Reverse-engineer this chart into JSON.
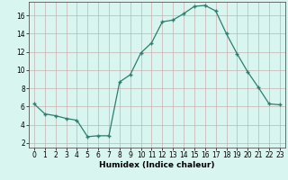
{
  "x": [
    0,
    1,
    2,
    3,
    4,
    5,
    6,
    7,
    8,
    9,
    10,
    11,
    12,
    13,
    14,
    15,
    16,
    17,
    18,
    19,
    20,
    21,
    22,
    23
  ],
  "y": [
    6.3,
    5.2,
    5.0,
    4.7,
    4.5,
    2.7,
    2.8,
    2.8,
    8.7,
    9.5,
    11.9,
    13.0,
    15.3,
    15.5,
    16.2,
    17.0,
    17.1,
    16.5,
    14.0,
    11.8,
    9.8,
    8.1,
    6.3,
    6.2
  ],
  "xlabel": "Humidex (Indice chaleur)",
  "xlim": [
    -0.5,
    23.5
  ],
  "ylim": [
    1.5,
    17.5
  ],
  "yticks": [
    2,
    4,
    6,
    8,
    10,
    12,
    14,
    16
  ],
  "xticks": [
    0,
    1,
    2,
    3,
    4,
    5,
    6,
    7,
    8,
    9,
    10,
    11,
    12,
    13,
    14,
    15,
    16,
    17,
    18,
    19,
    20,
    21,
    22,
    23
  ],
  "line_color": "#2e7d6e",
  "marker_color": "#2e7d6e",
  "bg_color": "#d8f5f0",
  "grid_color": "#c9b0b0",
  "label_fontsize": 6.5,
  "tick_fontsize": 5.5
}
